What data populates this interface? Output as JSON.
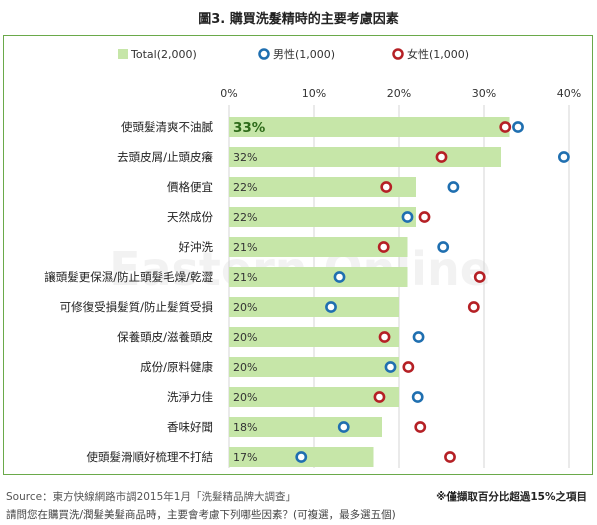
{
  "chart_data": {
    "type": "bar",
    "title": "圖3. 購買洗髮精時的主要考慮因素",
    "categories": [
      "使頭髮清爽不油膩",
      "去頭皮屑/止頭皮癢",
      "價格便宜",
      "天然成份",
      "好沖洗",
      "讓頭髮更保濕/防止頭髮毛燥/乾澀",
      "可修復受損髮質/防止髮質受損",
      "保養頭皮/滋養頭皮",
      "成份/原料健康",
      "洗淨力佳",
      "香味好聞",
      "使頭髮滑順好梳理不打結"
    ],
    "series": [
      {
        "name": "Total(2,000)",
        "type": "bar",
        "color": "#c6e6a8",
        "values": [
          33,
          32,
          22,
          22,
          21,
          21,
          20,
          20,
          20,
          20,
          18,
          17
        ],
        "labels": [
          "33%",
          "32%",
          "22%",
          "22%",
          "21%",
          "21%",
          "20%",
          "20%",
          "20%",
          "20%",
          "18%",
          "17%"
        ]
      },
      {
        "name": "男性(1,000)",
        "type": "marker",
        "color": "#1f6fb0",
        "values": [
          34,
          39.4,
          26.4,
          21,
          25.2,
          13,
          12,
          22.3,
          19,
          22.2,
          13.5,
          8.5
        ]
      },
      {
        "name": "女性(1,000)",
        "type": "marker",
        "color": "#b52025",
        "values": [
          32.5,
          25,
          18.5,
          23,
          18.2,
          29.5,
          28.8,
          18.3,
          21.1,
          17.7,
          22.5,
          26
        ]
      }
    ],
    "x_ticks": [
      "0%",
      "10%",
      "20%",
      "30%",
      "40%"
    ],
    "xlim": [
      0,
      40
    ],
    "legend": "top"
  },
  "source": "Source：東方快線網路市調2015年1月「洗髮精品牌大調查」",
  "question": "請問您在購買洗/潤髮美髮商品時，主要會考慮下列哪些因素？(可複選，最多選五個)",
  "note": "※僅擷取百分比超過15%之項目",
  "watermark": "Eastern Online"
}
